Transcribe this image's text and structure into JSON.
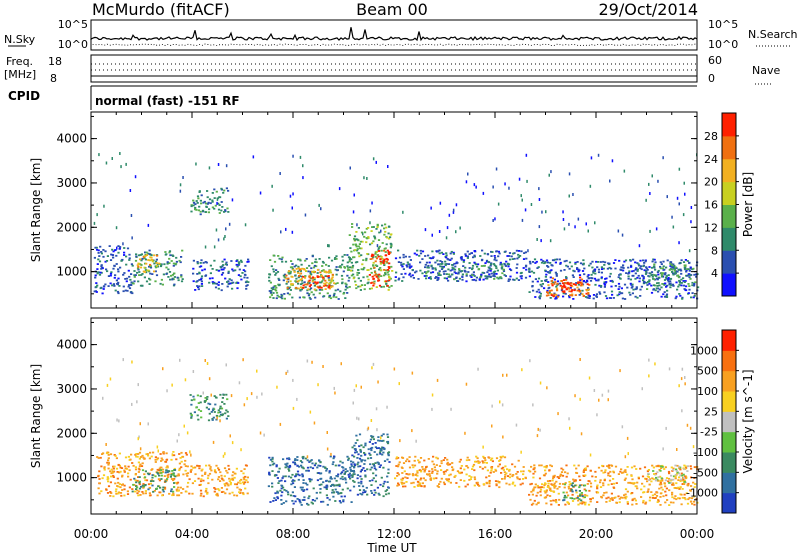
{
  "header": {
    "station": "McMurdo (fitACF)",
    "beam": "Beam 00",
    "date": "29/Oct/2014"
  },
  "top_panels": {
    "nsky_label": "N.Sky",
    "nsky_ticks": [
      "10^5",
      "10^0"
    ],
    "nsearch_label": "N.Search",
    "nsearch_ticks": [
      "10^5",
      "10^0"
    ],
    "freq_label": "Freq.",
    "freq_unit": "[MHz]",
    "freq_ticks": [
      "18",
      "8"
    ],
    "nave_label": "Nave",
    "nave_ticks": [
      "60",
      "0"
    ],
    "cpid_label": "CPID",
    "cpid_text": "normal (fast) -151 RF"
  },
  "chart_data": [
    {
      "type": "heatmap",
      "name": "power-panel",
      "xlabel": "",
      "ylabel": "Slant Range [km]",
      "xlim": [
        0,
        24
      ],
      "ylim": [
        180,
        4600
      ],
      "y_ticks": [
        "4000",
        "3000",
        "2000",
        "1000"
      ],
      "y_tick_values": [
        4000,
        3000,
        2000,
        1000
      ],
      "colorbar": {
        "label": "Power [dB]",
        "ticks": [
          "28",
          "24",
          "20",
          "16",
          "12",
          "8",
          "4"
        ],
        "colors": [
          "#1010ff",
          "#2a4fb0",
          "#2f8a6a",
          "#5ab04a",
          "#c8d020",
          "#f2b020",
          "#f07010",
          "#ff2000"
        ]
      },
      "blobs": [
        {
          "t0": 0.1,
          "t1": 1.6,
          "r0": 500,
          "r1": 1600,
          "level": 1
        },
        {
          "t0": 1.6,
          "t1": 3.6,
          "r0": 700,
          "r1": 1500,
          "level": 2
        },
        {
          "t0": 1.8,
          "t1": 2.7,
          "r0": 1000,
          "r1": 1400,
          "level": 5
        },
        {
          "t0": 3.9,
          "t1": 5.4,
          "r0": 2300,
          "r1": 2900,
          "level": 2
        },
        {
          "t0": 4.0,
          "t1": 6.2,
          "r0": 600,
          "r1": 1300,
          "level": 1
        },
        {
          "t0": 7.0,
          "t1": 10.2,
          "r0": 400,
          "r1": 1400,
          "level": 2
        },
        {
          "t0": 7.6,
          "t1": 9.6,
          "r0": 600,
          "r1": 1100,
          "level": 5
        },
        {
          "t0": 8.3,
          "t1": 9.4,
          "r0": 650,
          "r1": 950,
          "level": 7
        },
        {
          "t0": 10.2,
          "t1": 11.9,
          "r0": 600,
          "r1": 2100,
          "level": 3
        },
        {
          "t0": 11.0,
          "t1": 11.8,
          "r0": 700,
          "r1": 1500,
          "level": 7
        },
        {
          "t0": 12.0,
          "t1": 17.2,
          "r0": 800,
          "r1": 1500,
          "level": 1
        },
        {
          "t0": 13.2,
          "t1": 16.5,
          "r0": 850,
          "r1": 1200,
          "level": 2
        },
        {
          "t0": 17.3,
          "t1": 20.4,
          "r0": 400,
          "r1": 1300,
          "level": 1
        },
        {
          "t0": 18.0,
          "t1": 19.7,
          "r0": 450,
          "r1": 900,
          "level": 6
        },
        {
          "t0": 18.6,
          "t1": 19.4,
          "r0": 550,
          "r1": 800,
          "level": 7
        },
        {
          "t0": 20.4,
          "t1": 24.0,
          "r0": 400,
          "r1": 1300,
          "level": 1
        },
        {
          "t0": 21.8,
          "t1": 24.0,
          "r0": 600,
          "r1": 1200,
          "level": 2
        }
      ]
    },
    {
      "type": "heatmap",
      "name": "velocity-panel",
      "xlabel": "Time UT",
      "ylabel": "Slant Range [km]",
      "xlim": [
        0,
        24
      ],
      "ylim": [
        180,
        4600
      ],
      "x_ticks": [
        "00:00",
        "04:00",
        "08:00",
        "12:00",
        "16:00",
        "20:00",
        "00:00"
      ],
      "x_tick_values": [
        0,
        4,
        8,
        12,
        16,
        20,
        24
      ],
      "y_ticks": [
        "4000",
        "3000",
        "2000",
        "1000"
      ],
      "y_tick_values": [
        4000,
        3000,
        2000,
        1000
      ],
      "colorbar": {
        "label": "Velocity [m s^-1]",
        "ticks": [
          "1000",
          "500",
          "100",
          "25",
          "-25",
          "-100",
          "-500",
          "-1000"
        ],
        "colors": [
          "#2040c0",
          "#3070a0",
          "#3a8a60",
          "#60c040",
          "#c0c0c0",
          "#f8d020",
          "#f8a020",
          "#f87010",
          "#ff2000"
        ]
      },
      "blobs": [
        {
          "t0": 0.2,
          "t1": 3.8,
          "r0": 600,
          "r1": 1600,
          "level": 6
        },
        {
          "t0": 1.6,
          "t1": 3.3,
          "r0": 700,
          "r1": 1200,
          "level": 2
        },
        {
          "t0": 3.9,
          "t1": 5.4,
          "r0": 2300,
          "r1": 2900,
          "level": 2
        },
        {
          "t0": 3.8,
          "t1": 6.2,
          "r0": 600,
          "r1": 1300,
          "level": 6
        },
        {
          "t0": 7.0,
          "t1": 10.4,
          "r0": 400,
          "r1": 1500,
          "level": 1
        },
        {
          "t0": 10.3,
          "t1": 11.8,
          "r0": 600,
          "r1": 2000,
          "level": 1
        },
        {
          "t0": 12.0,
          "t1": 17.2,
          "r0": 800,
          "r1": 1500,
          "level": 6
        },
        {
          "t0": 17.3,
          "t1": 20.4,
          "r0": 400,
          "r1": 1300,
          "level": 6
        },
        {
          "t0": 18.6,
          "t1": 19.6,
          "r0": 500,
          "r1": 900,
          "level": 2
        },
        {
          "t0": 20.4,
          "t1": 24.0,
          "r0": 400,
          "r1": 1300,
          "level": 6
        },
        {
          "t0": 22.0,
          "t1": 23.6,
          "r0": 900,
          "r1": 1300,
          "level": 4
        }
      ]
    }
  ]
}
